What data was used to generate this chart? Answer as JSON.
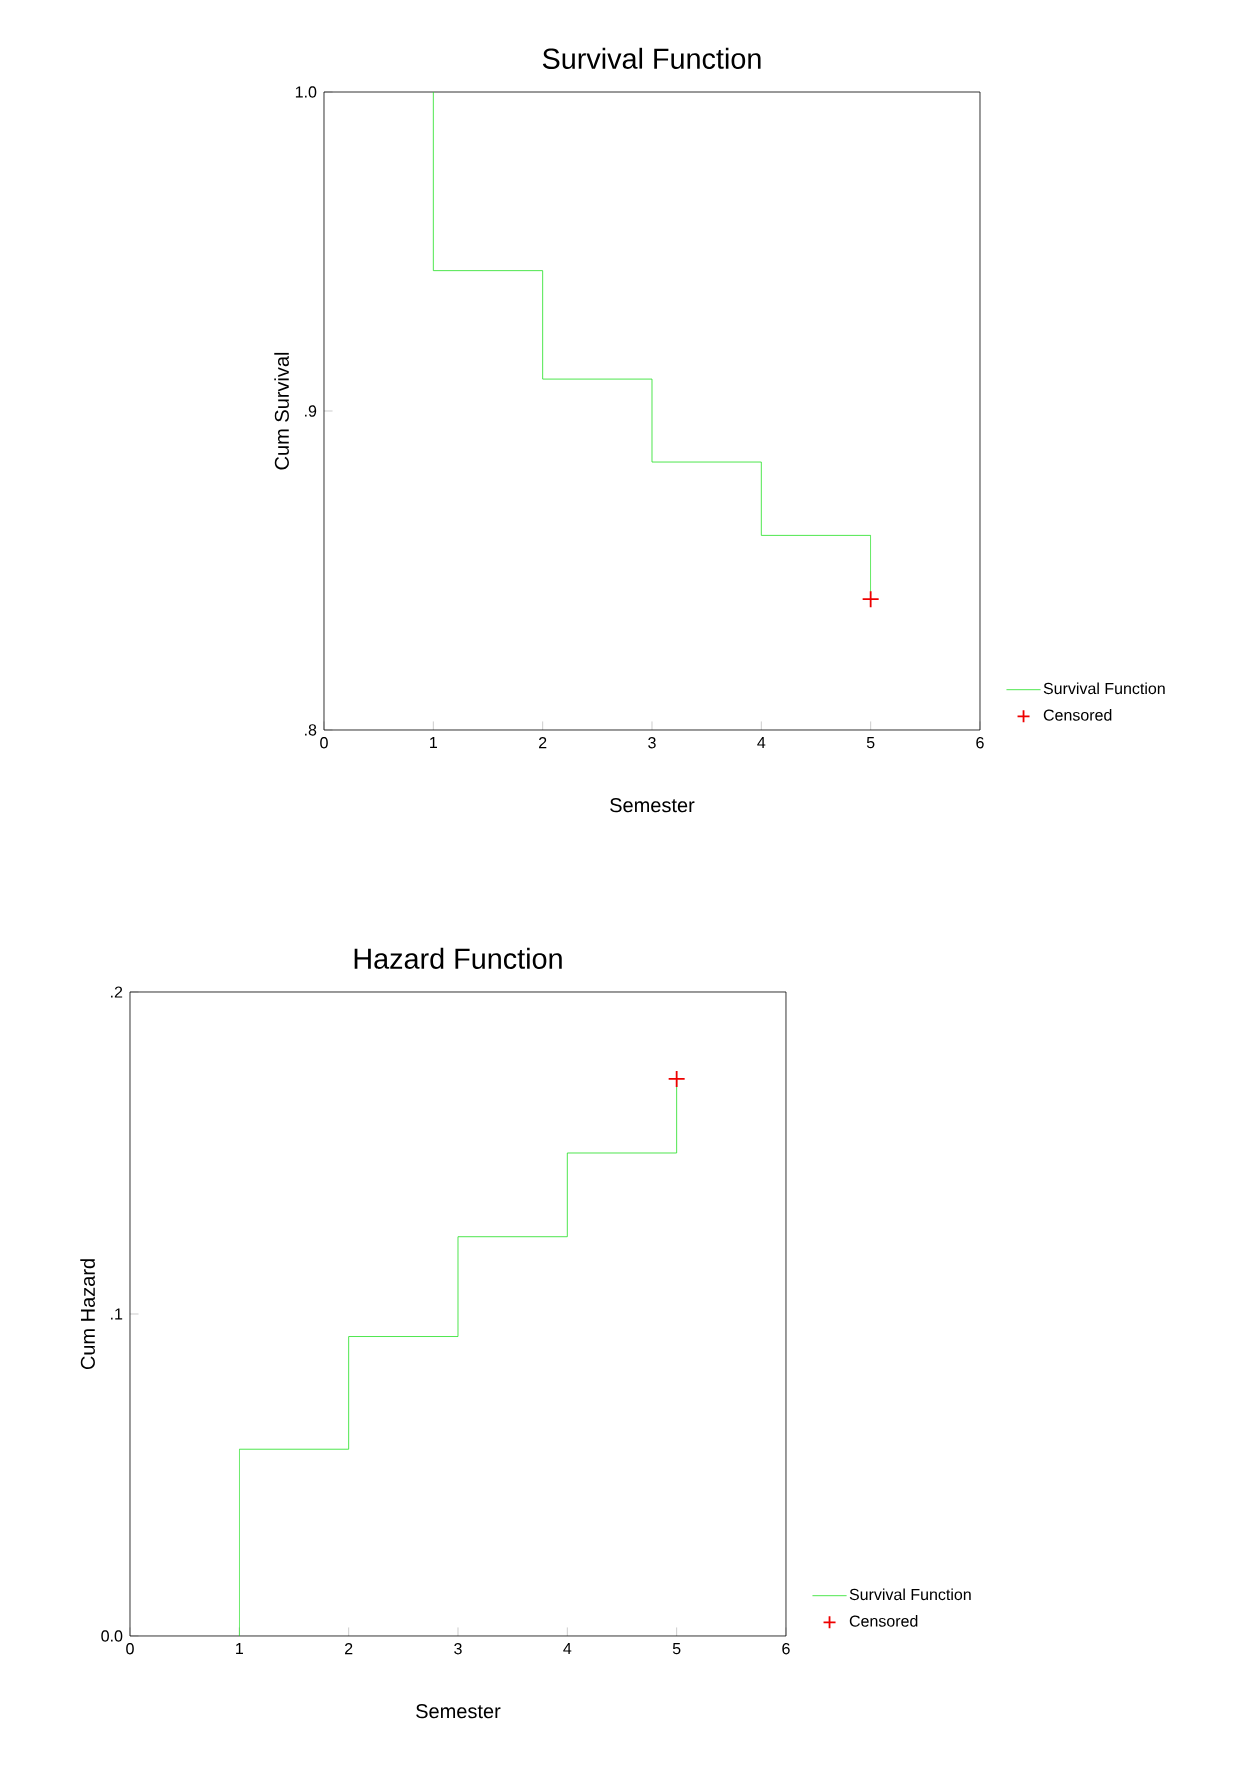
{
  "chart_data": [
    {
      "type": "step",
      "title": "Survival Function",
      "xlabel": "Semester",
      "ylabel": "Cum Survival",
      "xlim": [
        0,
        6
      ],
      "xticks": [
        0,
        1,
        2,
        3,
        4,
        5,
        6
      ],
      "ylim": [
        0.8,
        1.0
      ],
      "yticks": [
        {
          "value": 0.8,
          "label": ".8"
        },
        {
          "value": 0.9,
          "label": ".9"
        },
        {
          "value": 1.0,
          "label": "1.0"
        }
      ],
      "legend": "right",
      "series": [
        {
          "name": "Survival Function",
          "color": "#22e022",
          "x": [
            1,
            2,
            3,
            4,
            5,
            5
          ],
          "values": [
            1.0,
            0.944,
            0.91,
            0.884,
            0.861,
            0.841
          ]
        },
        {
          "name": "Censored",
          "type": "scatter",
          "marker": "cross",
          "color": "#ee0000",
          "x": [
            5
          ],
          "values": [
            0.841
          ]
        }
      ]
    },
    {
      "type": "step",
      "title": "Hazard Function",
      "xlabel": "Semester",
      "ylabel": "Cum Hazard",
      "xlim": [
        0,
        6
      ],
      "xticks": [
        0,
        1,
        2,
        3,
        4,
        5,
        6
      ],
      "ylim": [
        0.0,
        0.2
      ],
      "yticks": [
        {
          "value": 0.0,
          "label": "0.0"
        },
        {
          "value": 0.1,
          "label": ".1"
        },
        {
          "value": 0.2,
          "label": ".2"
        }
      ],
      "legend": "right",
      "series": [
        {
          "name": "Survival Function",
          "color": "#22e022",
          "x": [
            1,
            2,
            3,
            4,
            5,
            5
          ],
          "values": [
            0.0,
            0.058,
            0.093,
            0.124,
            0.15,
            0.173
          ]
        },
        {
          "name": "Censored",
          "type": "scatter",
          "marker": "cross",
          "color": "#ee0000",
          "x": [
            5
          ],
          "values": [
            0.173
          ]
        }
      ]
    }
  ]
}
